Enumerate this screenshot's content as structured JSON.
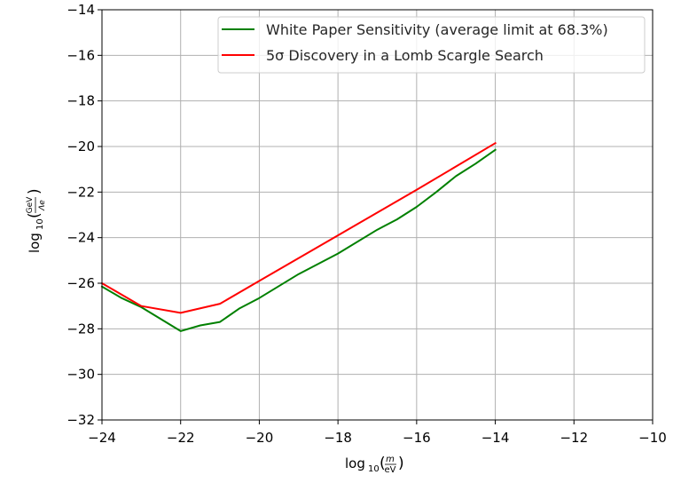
{
  "chart_data": {
    "type": "line",
    "title": "",
    "xlabel": "log10(m/eV)",
    "ylabel": "log10(GeV/Λe)",
    "xlim": [
      -24,
      -10
    ],
    "ylim": [
      -32,
      -14
    ],
    "xticks": [
      -24,
      -22,
      -20,
      -18,
      -16,
      -14,
      -12,
      -10
    ],
    "yticks": [
      -32,
      -30,
      -28,
      -26,
      -24,
      -22,
      -20,
      -18,
      -16,
      -14
    ],
    "xtick_labels": [
      "−24",
      "−22",
      "−20",
      "−18",
      "−16",
      "−14",
      "−12",
      "−10"
    ],
    "ytick_labels": [
      "−32",
      "−30",
      "−28",
      "−26",
      "−24",
      "−22",
      "−20",
      "−18",
      "−16",
      "−14"
    ],
    "grid": true,
    "legend_position": "upper right",
    "series": [
      {
        "name": "White Paper Sensitivity (average limit at 68.3%)",
        "color": "#008000",
        "x": [
          -24,
          -23.5,
          -23,
          -22,
          -21.5,
          -21,
          -20.5,
          -20,
          -19,
          -18,
          -17,
          -16.5,
          -16,
          -15.5,
          -15,
          -14.5,
          -14
        ],
        "y": [
          -26.15,
          -26.65,
          -27.05,
          -28.1,
          -27.85,
          -27.7,
          -27.1,
          -26.65,
          -25.6,
          -24.7,
          -23.65,
          -23.2,
          -22.65,
          -22.0,
          -21.3,
          -20.75,
          -20.15
        ]
      },
      {
        "name": "5σ Discovery in a Lomb Scargle Search",
        "color": "#ff0000",
        "x": [
          -24,
          -23,
          -22,
          -21,
          -20,
          -18,
          -16,
          -14
        ],
        "y": [
          -26.0,
          -27.0,
          -27.3,
          -26.9,
          -25.9,
          -23.9,
          -21.9,
          -19.85
        ]
      }
    ]
  },
  "legend": {
    "items": [
      {
        "label": "White Paper Sensitivity (average limit at 68.3%)",
        "color": "#008000"
      },
      {
        "label": "5σ Discovery in a Lomb Scargle Search",
        "color": "#ff0000"
      }
    ]
  },
  "axes": {
    "xlabel_main": "log",
    "xlabel_sub": "10",
    "xlabel_num": "m",
    "xlabel_den": "eV",
    "ylabel_main": "log",
    "ylabel_sub": "10",
    "ylabel_num": "GeV",
    "ylabel_den": "Λe"
  }
}
